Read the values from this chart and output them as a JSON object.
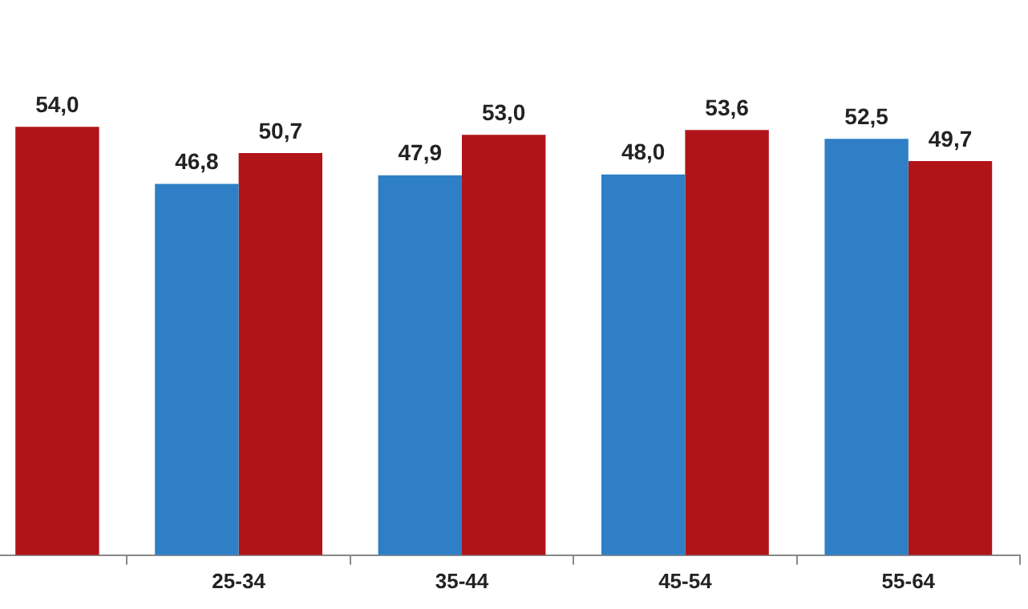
{
  "chart_data": {
    "type": "bar",
    "categories": [
      null,
      "25-34",
      "35-44",
      "45-54",
      "55-64"
    ],
    "series": [
      {
        "color": "#2e7fc6",
        "values": [
          null,
          46.8,
          47.9,
          48.0,
          52.5
        ],
        "value_labels": [
          null,
          "46,8",
          "47,9",
          "48,0",
          "52,5"
        ]
      },
      {
        "color": "#b01419",
        "values": [
          54.0,
          50.7,
          53.0,
          53.6,
          49.7
        ],
        "value_labels": [
          "54,0",
          "50,7",
          "53,0",
          "53,6",
          "49,7"
        ]
      }
    ],
    "tick_labels": "x",
    "grid": false,
    "legend": false
  }
}
